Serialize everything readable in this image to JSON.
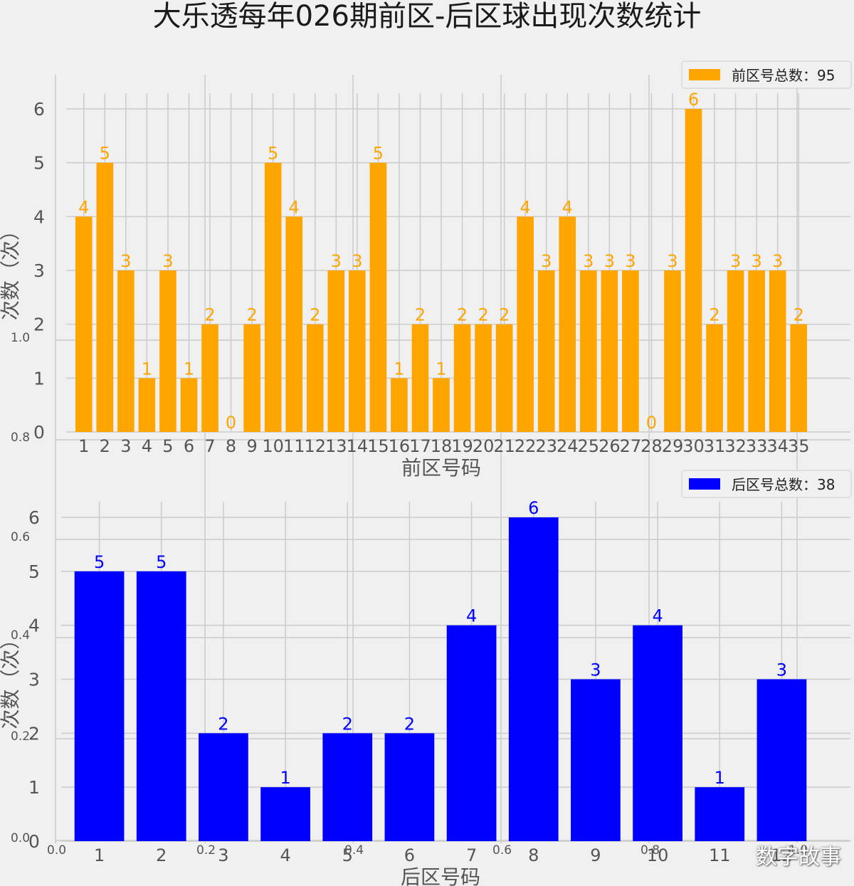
{
  "title": "大乐透每年026期前区-后区球出现次数统计",
  "watermark": "数字故事",
  "colors": {
    "background": "#f0f0f0",
    "grid": "#cbcbcb",
    "front": "#ffa500",
    "back": "#0000ff",
    "text": "#555555"
  },
  "background_axis": {
    "x_ticks": [
      "0.0",
      "0.2",
      "0.4",
      "0.6",
      "0.8",
      "1.0"
    ],
    "y_ticks": [
      "0.0",
      "0.2",
      "0.4",
      "0.6",
      "0.8",
      "1.0"
    ]
  },
  "chart_data": [
    {
      "type": "bar",
      "xlabel": "前区号码",
      "ylabel": "次数（次）",
      "legend": "前区号总数：95",
      "legend_position": "top-right",
      "categories": [
        "1",
        "2",
        "3",
        "4",
        "5",
        "6",
        "7",
        "8",
        "9",
        "10",
        "11",
        "12",
        "13",
        "14",
        "15",
        "16",
        "17",
        "18",
        "19",
        "20",
        "21",
        "22",
        "23",
        "24",
        "25",
        "26",
        "27",
        "28",
        "29",
        "30",
        "31",
        "32",
        "33",
        "34",
        "35"
      ],
      "values": [
        4,
        5,
        3,
        1,
        3,
        1,
        2,
        0,
        2,
        5,
        4,
        2,
        3,
        3,
        5,
        1,
        2,
        1,
        2,
        2,
        2,
        4,
        3,
        4,
        3,
        3,
        3,
        0,
        3,
        6,
        2,
        3,
        3,
        3,
        2
      ],
      "ylim": [
        0,
        6
      ],
      "y_ticks": [
        "0",
        "1",
        "2",
        "3",
        "4",
        "5",
        "6"
      ],
      "grid": true,
      "color": "#ffa500"
    },
    {
      "type": "bar",
      "xlabel": "后区号码",
      "ylabel": "次数（次）",
      "legend": "后区号总数：38",
      "legend_position": "top-right",
      "categories": [
        "1",
        "2",
        "3",
        "4",
        "5",
        "6",
        "7",
        "8",
        "9",
        "10",
        "11",
        "12"
      ],
      "values": [
        5,
        5,
        2,
        1,
        2,
        2,
        4,
        6,
        3,
        4,
        1,
        3
      ],
      "ylim": [
        0,
        6
      ],
      "y_ticks": [
        "0",
        "1",
        "2",
        "3",
        "4",
        "5",
        "6"
      ],
      "grid": true,
      "color": "#0000ff"
    }
  ]
}
